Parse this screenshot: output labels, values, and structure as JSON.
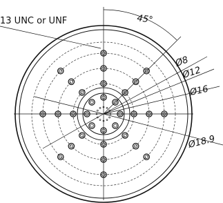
{
  "labels": {
    "thread": "13 UNC or UNF",
    "angle": "45°",
    "d8": "Ø8",
    "d12": "Ø12",
    "d16": "Ø16",
    "d18": "Ø18.9"
  }
}
